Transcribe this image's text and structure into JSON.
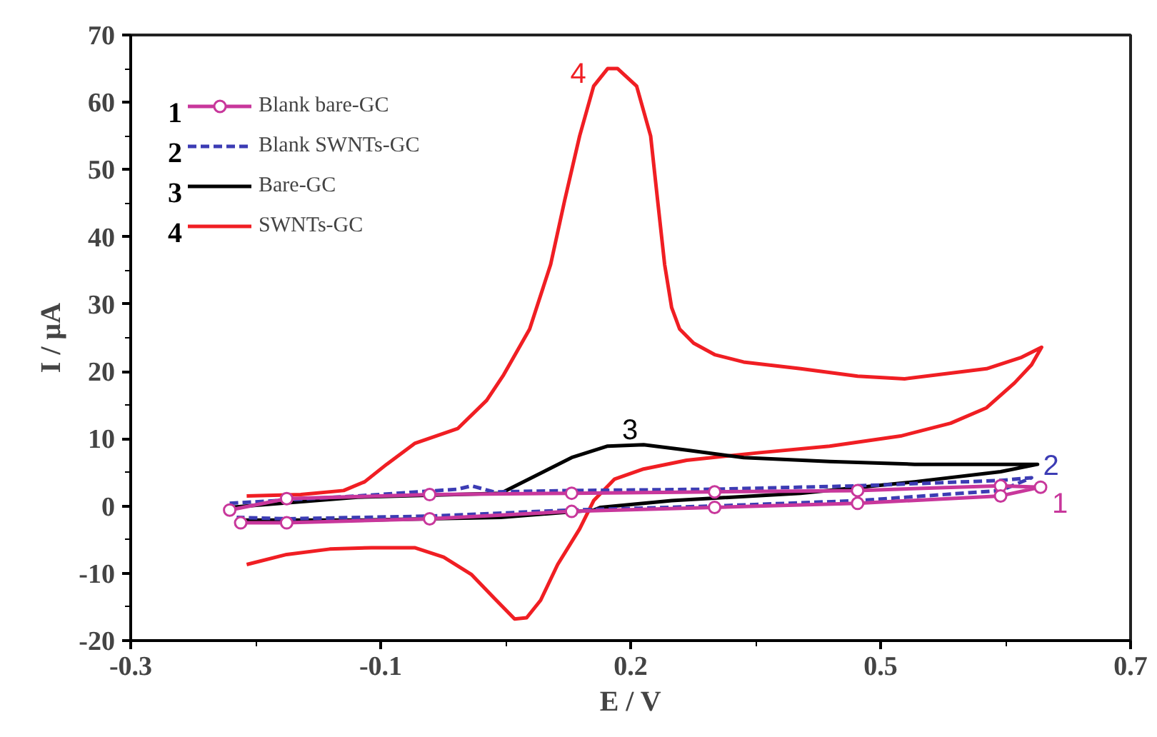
{
  "chart_data": {
    "type": "line",
    "xlabel": "E / V",
    "ylabel": "I / μA",
    "xlim": [
      -0.3,
      0.7
    ],
    "ylim": [
      -20,
      70
    ],
    "xticks": [
      {
        "value": -0.3,
        "label": "-0.3"
      },
      {
        "value": -0.175,
        "label": null
      },
      {
        "value": -0.05,
        "label": "-0.1"
      },
      {
        "value": 0.075,
        "label": null
      },
      {
        "value": 0.2,
        "label": "0.2"
      },
      {
        "value": 0.325,
        "label": null
      },
      {
        "value": 0.45,
        "label": "0.5"
      },
      {
        "value": 0.575,
        "label": null
      },
      {
        "value": 0.7,
        "label": "0.7"
      }
    ],
    "yticks": [
      -20,
      {
        "value": -15,
        "label": null
      },
      -10,
      {
        "value": -5,
        "label": null
      },
      0,
      {
        "value": 5,
        "label": null
      },
      10,
      {
        "value": 15,
        "label": null
      },
      20,
      {
        "value": 25,
        "label": null
      },
      30,
      {
        "value": 35,
        "label": null
      },
      40,
      {
        "value": 45,
        "label": null
      },
      50,
      {
        "value": 55,
        "label": null
      },
      60,
      {
        "value": 65,
        "label": null
      },
      70
    ],
    "grid": false,
    "legend": "top left",
    "series": [
      {
        "name": "Blank bare-GC",
        "color": "#c8379b",
        "marker": "circle",
        "line_style": "solid",
        "x": [
          -0.201,
          -0.144,
          -0.001,
          0.141,
          0.284,
          0.427,
          0.57,
          0.61,
          0.57,
          0.427,
          0.284,
          0.141,
          -0.001,
          -0.144,
          -0.19
        ],
        "values": [
          -0.6,
          1.1,
          1.7,
          1.9,
          2.1,
          2.3,
          3.0,
          2.8,
          1.5,
          0.4,
          -0.2,
          -0.8,
          -1.9,
          -2.5,
          -2.5
        ]
      },
      {
        "name": "Blank SWNTs-GC",
        "color": "#3c3cb4",
        "marker": "none",
        "line_style": "dashed",
        "x": [
          -0.201,
          -0.073,
          0.027,
          0.041,
          0.063,
          0.141,
          0.284,
          0.427,
          0.57,
          0.601,
          0.57,
          0.427,
          0.284,
          0.141,
          -0.001,
          -0.144,
          -0.194
        ],
        "values": [
          0.4,
          1.5,
          2.5,
          3.0,
          2.1,
          2.3,
          2.5,
          3.0,
          3.8,
          4.2,
          2.3,
          0.8,
          0.0,
          -0.6,
          -1.5,
          -1.9,
          -1.7
        ]
      },
      {
        "name": "Bare-GC",
        "color": "#000000",
        "marker": "none",
        "line_style": "solid",
        "x": [
          -0.201,
          -0.073,
          0.07,
          0.113,
          0.141,
          0.177,
          0.213,
          0.256,
          0.313,
          0.399,
          0.484,
          0.57,
          0.607,
          0.57,
          0.484,
          0.37,
          0.241,
          0.17,
          0.163,
          0.07,
          -0.073,
          -0.193
        ],
        "values": [
          -0.2,
          1.3,
          1.9,
          5.1,
          7.2,
          8.9,
          9.1,
          8.3,
          7.2,
          6.6,
          6.2,
          6.2,
          6.2,
          5.1,
          3.6,
          1.9,
          0.8,
          -0.2,
          -0.6,
          -1.7,
          -2.1,
          -2.1
        ]
      },
      {
        "name": "SWNTs-GC",
        "color": "#f01e23",
        "marker": "none",
        "line_style": "solid",
        "x": [
          -0.184,
          -0.144,
          -0.101,
          -0.059,
          -0.016,
          0.013,
          0.041,
          0.063,
          0.084,
          0.096,
          0.11,
          0.127,
          0.149,
          0.163,
          0.184,
          0.213,
          0.256,
          0.327,
          0.399,
          0.47,
          0.52,
          0.556,
          0.584,
          0.601,
          0.611,
          0.591,
          0.556,
          0.474,
          0.427,
          0.37,
          0.313,
          0.284,
          0.263,
          0.249,
          0.241,
          0.234,
          0.227,
          0.22,
          0.206,
          0.187,
          0.177,
          0.163,
          0.149,
          0.134,
          0.12,
          0.099,
          0.073,
          0.056,
          0.027,
          -0.016,
          -0.044,
          -0.066,
          -0.087,
          -0.13,
          -0.184
        ],
        "values": [
          -8.7,
          -7.2,
          -6.4,
          -6.2,
          -6.2,
          -7.6,
          -10.2,
          -13.6,
          -16.8,
          -16.6,
          -14.0,
          -8.7,
          -3.4,
          0.8,
          4.0,
          5.5,
          6.8,
          7.9,
          8.9,
          10.4,
          12.3,
          14.6,
          18.3,
          21.0,
          23.6,
          22.1,
          20.4,
          18.9,
          19.3,
          20.4,
          21.4,
          22.5,
          24.2,
          26.3,
          29.5,
          35.9,
          45.4,
          55.0,
          62.4,
          65.0,
          65.0,
          62.4,
          55.0,
          45.4,
          35.9,
          26.3,
          19.5,
          15.7,
          11.5,
          9.3,
          6.2,
          3.6,
          2.3,
          1.7,
          1.5
        ]
      }
    ],
    "annotations": [
      "1",
      "2",
      "3",
      "4",
      "1",
      "2",
      "3",
      "4"
    ]
  }
}
